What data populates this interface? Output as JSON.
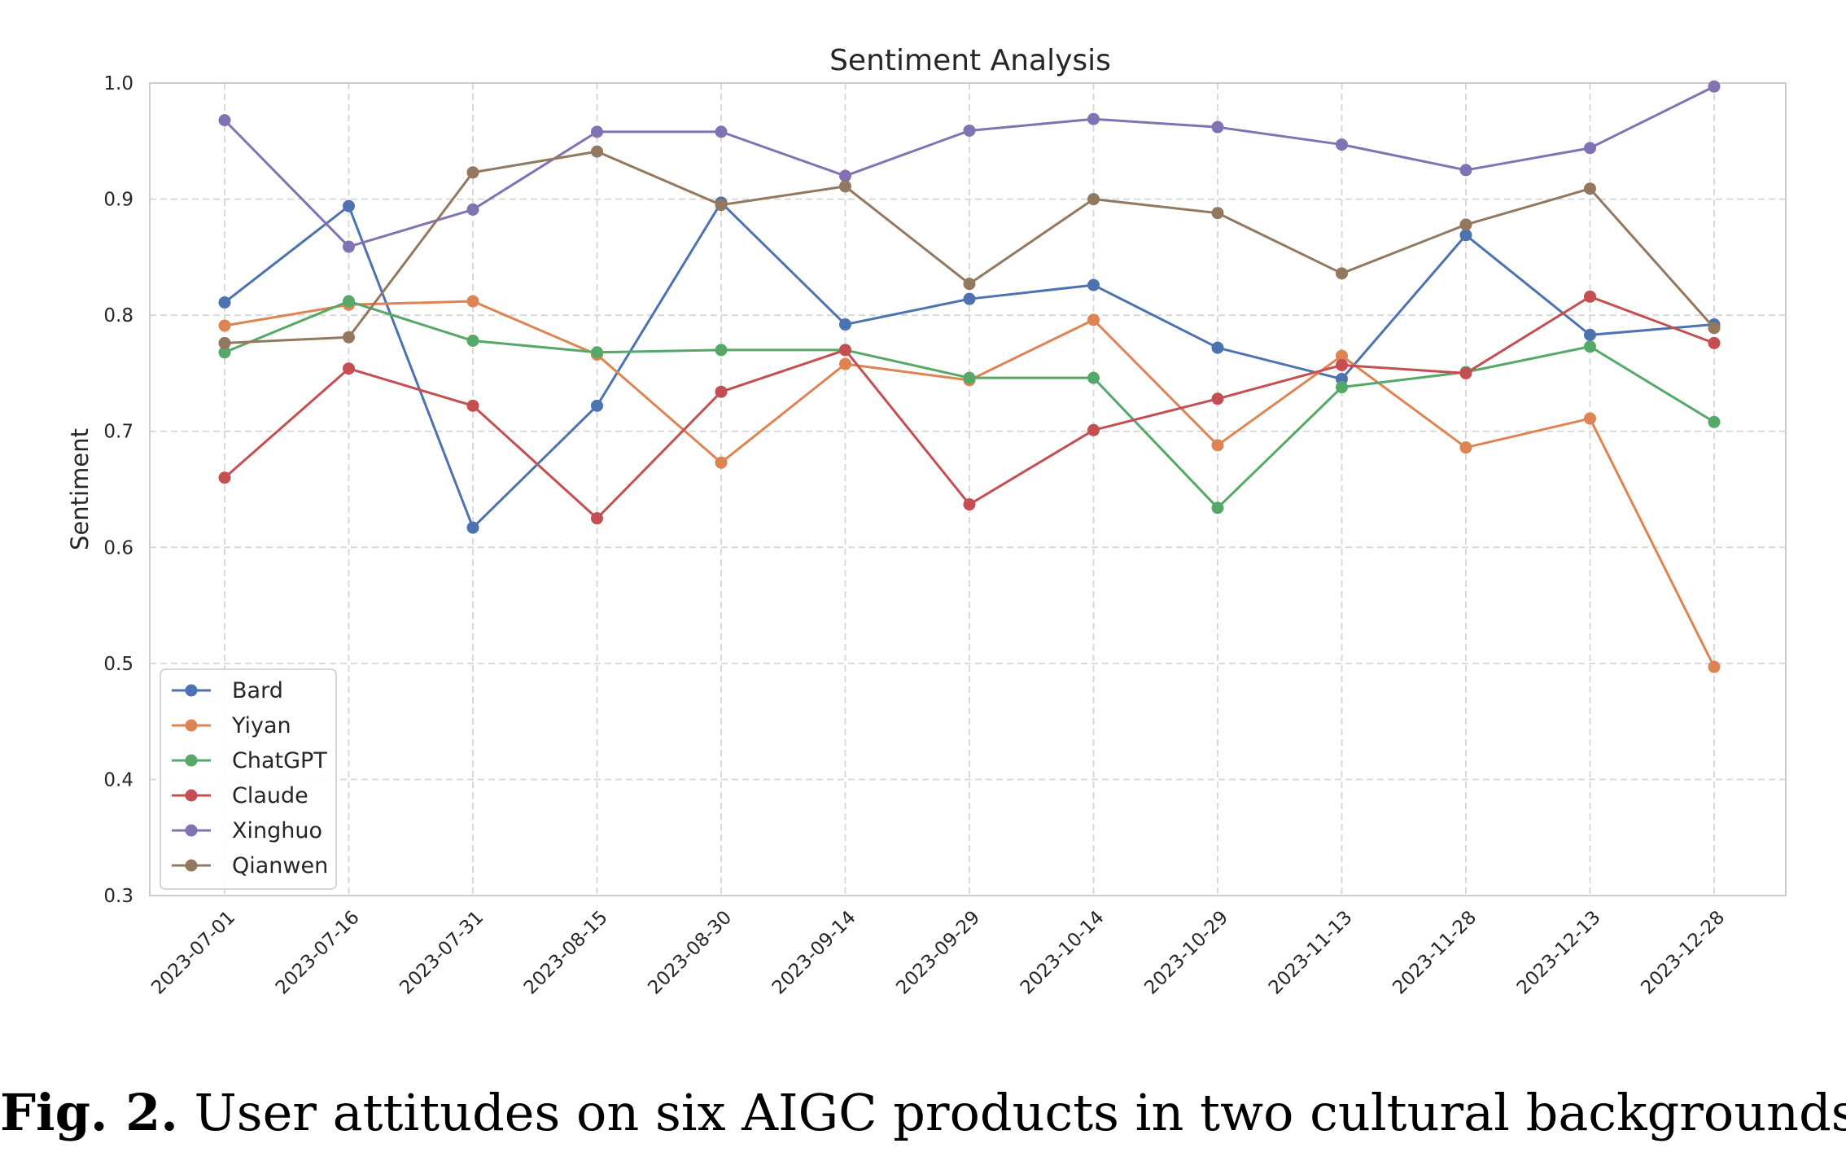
{
  "caption": {
    "label": "Fig. 2.",
    "text": " User attitudes on six AIGC products in two cultural backgrounds."
  },
  "chart_data": {
    "type": "line",
    "title": "Sentiment Analysis",
    "xlabel": "",
    "ylabel": "Sentiment",
    "ylim": [
      0.3,
      1.0
    ],
    "yticks": [
      "0.3",
      "0.4",
      "0.5",
      "0.6",
      "0.7",
      "0.8",
      "0.9",
      "1.0"
    ],
    "grid": true,
    "legend_position": "lower-left",
    "categories": [
      "2023-07-01",
      "2023-07-16",
      "2023-07-31",
      "2023-08-15",
      "2023-08-30",
      "2023-09-14",
      "2023-09-29",
      "2023-10-14",
      "2023-10-29",
      "2023-11-13",
      "2023-11-28",
      "2023-12-13",
      "2023-12-28"
    ],
    "series": [
      {
        "name": "Bard",
        "color": "#4c72b0",
        "values": [
          0.811,
          0.894,
          0.617,
          0.722,
          0.897,
          0.792,
          0.814,
          0.826,
          0.772,
          0.745,
          0.869,
          0.783,
          0.792
        ]
      },
      {
        "name": "Yiyan",
        "color": "#dd8452",
        "values": [
          0.791,
          0.809,
          0.812,
          0.766,
          0.673,
          0.758,
          0.744,
          0.796,
          0.688,
          0.765,
          0.686,
          0.711,
          0.497
        ]
      },
      {
        "name": "ChatGPT",
        "color": "#55a868",
        "values": [
          0.768,
          0.812,
          0.778,
          0.768,
          0.77,
          0.77,
          0.746,
          0.746,
          0.634,
          0.738,
          0.751,
          0.773,
          0.708
        ]
      },
      {
        "name": "Claude",
        "color": "#c44e52",
        "values": [
          0.66,
          0.754,
          0.722,
          0.625,
          0.734,
          0.77,
          0.637,
          0.701,
          0.728,
          0.757,
          0.75,
          0.816,
          0.776
        ]
      },
      {
        "name": "Xinghuo",
        "color": "#8172b3",
        "values": [
          0.968,
          0.859,
          0.891,
          0.958,
          0.958,
          0.92,
          0.959,
          0.969,
          0.962,
          0.947,
          0.925,
          0.944,
          0.997
        ]
      },
      {
        "name": "Qianwen",
        "color": "#937860",
        "values": [
          0.776,
          0.781,
          0.923,
          0.941,
          0.895,
          0.911,
          0.827,
          0.9,
          0.888,
          0.836,
          0.878,
          0.909,
          0.789
        ]
      }
    ]
  }
}
